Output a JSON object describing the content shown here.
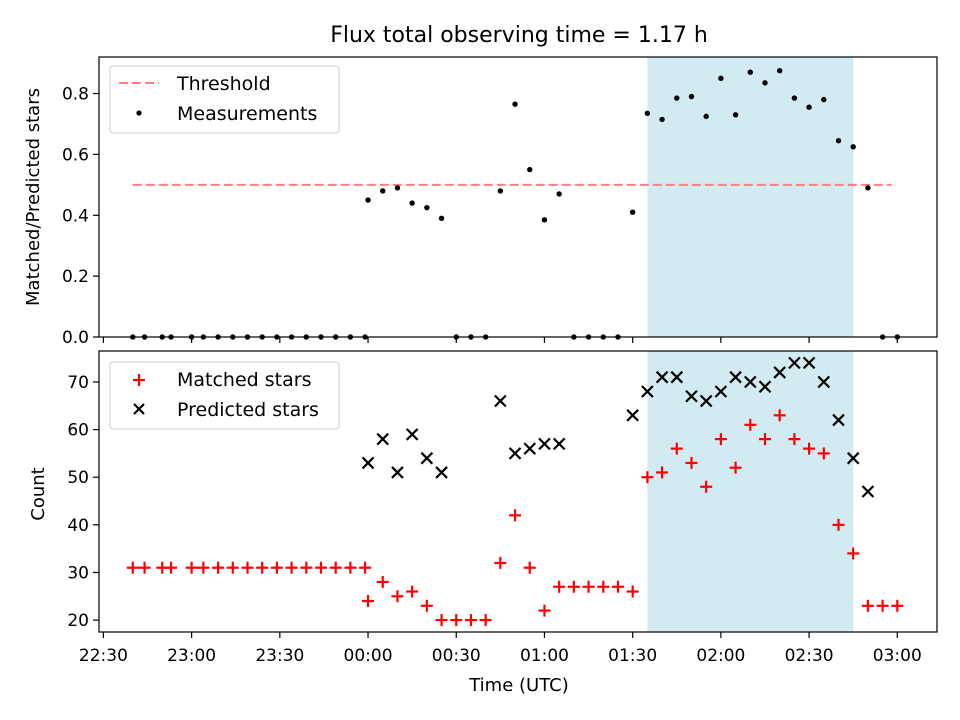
{
  "chart_data": {
    "title": "Flux total observing time = 1.17 h",
    "xlabel": "Time (UTC)",
    "x_tick_labels": [
      "22:30",
      "23:00",
      "23:30",
      "00:00",
      "00:30",
      "01:00",
      "01:30",
      "02:00",
      "02:30",
      "03:00"
    ],
    "x_tick_minutes": [
      -90,
      -60,
      -30,
      0,
      30,
      60,
      90,
      120,
      150,
      180
    ],
    "xlim_minutes": [
      -91.5,
      193.5
    ],
    "highlight_span_minutes": [
      95,
      165
    ],
    "colors": {
      "highlight": "#add8e6",
      "threshold": "#ff7f7f",
      "measurements": "#000000",
      "matched": "#ff0000",
      "predicted": "#000000"
    },
    "panels": [
      {
        "type": "scatter",
        "ylabel": "Matched/Predicted stars",
        "ylim": [
          0,
          0.92
        ],
        "y_ticks": [
          0.0,
          0.2,
          0.4,
          0.6,
          0.8
        ],
        "y_tick_labels": [
          "0.0",
          "0.2",
          "0.4",
          "0.6",
          "0.8"
        ],
        "legend": "top-left",
        "threshold": {
          "name": "Threshold",
          "value": 0.5,
          "x_range_minutes": [
            -80,
            178
          ]
        },
        "series": [
          {
            "name": "Measurements",
            "x_minutes": [
              -80,
              -76,
              -70,
              -67,
              -60,
              -56,
              -51,
              -46,
              -41,
              -36,
              -31,
              -26,
              -21,
              -16,
              -11,
              -6,
              -1,
              0,
              5,
              10,
              15,
              20,
              25,
              30,
              35,
              40,
              45,
              50,
              55,
              60,
              65,
              70,
              75,
              80,
              85,
              90,
              95,
              100,
              105,
              110,
              115,
              120,
              125,
              130,
              135,
              140,
              145,
              150,
              155,
              160,
              165,
              170,
              175,
              180
            ],
            "y": [
              0,
              0,
              0,
              0,
              0,
              0,
              0,
              0,
              0,
              0,
              0,
              0,
              0,
              0,
              0,
              0,
              0,
              0.45,
              0.48,
              0.49,
              0.44,
              0.425,
              0.39,
              0,
              0,
              0,
              0.48,
              0.765,
              0.55,
              0.385,
              0.47,
              0,
              0,
              0,
              0,
              0.41,
              0.735,
              0.715,
              0.785,
              0.79,
              0.725,
              0.85,
              0.73,
              0.87,
              0.835,
              0.875,
              0.785,
              0.755,
              0.78,
              0.645,
              0.625,
              0.49,
              0,
              0
            ]
          }
        ]
      },
      {
        "type": "scatter",
        "ylabel": "Count",
        "ylim": [
          17.5,
          76.5
        ],
        "y_ticks": [
          20,
          30,
          40,
          50,
          60,
          70
        ],
        "y_tick_labels": [
          "20",
          "30",
          "40",
          "50",
          "60",
          "70"
        ],
        "legend": "top-left",
        "series": [
          {
            "name": "Matched stars",
            "marker": "plus",
            "x_minutes": [
              -80,
              -76,
              -70,
              -67,
              -60,
              -56,
              -51,
              -46,
              -41,
              -36,
              -31,
              -26,
              -21,
              -16,
              -11,
              -6,
              -1,
              0,
              5,
              10,
              15,
              20,
              25,
              30,
              35,
              40,
              45,
              50,
              55,
              60,
              65,
              70,
              75,
              80,
              85,
              90,
              95,
              100,
              105,
              110,
              115,
              120,
              125,
              130,
              135,
              140,
              145,
              150,
              155,
              160,
              165,
              170,
              175,
              180
            ],
            "y": [
              31,
              31,
              31,
              31,
              31,
              31,
              31,
              31,
              31,
              31,
              31,
              31,
              31,
              31,
              31,
              31,
              31,
              24,
              28,
              25,
              26,
              23,
              20,
              20,
              20,
              20,
              32,
              42,
              31,
              22,
              27,
              27,
              27,
              27,
              27,
              26,
              50,
              51,
              56,
              53,
              48,
              58,
              52,
              61,
              58,
              63,
              58,
              56,
              55,
              40,
              34,
              23,
              23,
              23
            ]
          },
          {
            "name": "Predicted stars",
            "marker": "x",
            "x_minutes": [
              0,
              5,
              10,
              15,
              20,
              25,
              45,
              50,
              55,
              60,
              65,
              90,
              95,
              100,
              105,
              110,
              115,
              120,
              125,
              130,
              135,
              140,
              145,
              150,
              155,
              160,
              165,
              170
            ],
            "y": [
              53,
              58,
              51,
              59,
              54,
              51,
              66,
              55,
              56,
              57,
              57,
              63,
              68,
              71,
              71,
              67,
              66,
              68,
              71,
              70,
              69,
              72,
              74,
              74,
              70,
              62,
              54,
              47
            ]
          }
        ]
      }
    ]
  }
}
